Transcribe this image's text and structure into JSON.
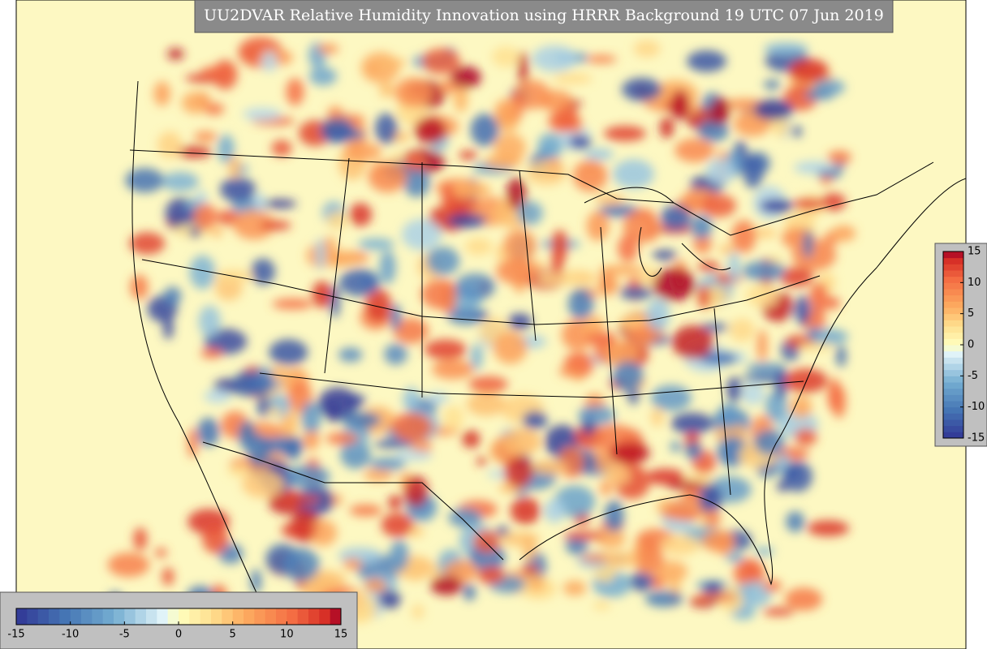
{
  "title": "UU2DVAR Relative Humidity Innovation using HRRR Background 19 UTC 07 Jun 2019",
  "colorbar": {
    "range": [
      -15,
      15
    ],
    "ticks": [
      -15,
      -10,
      -5,
      0,
      5,
      10,
      15
    ]
  }
}
